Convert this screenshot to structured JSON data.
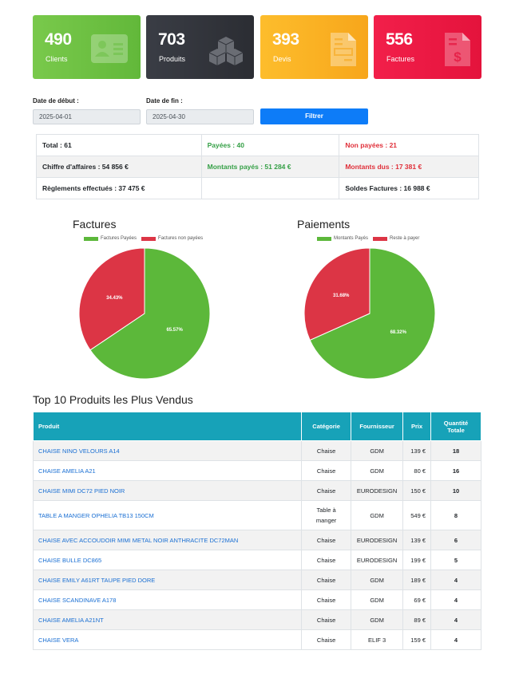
{
  "cards": {
    "clients": {
      "value": "490",
      "label": "Clients",
      "icon": "id-card-icon",
      "color": "#6cbf43"
    },
    "produits": {
      "value": "703",
      "label": "Produits",
      "icon": "boxes-icon",
      "color": "#33363d"
    },
    "devis": {
      "value": "393",
      "label": "Devis",
      "icon": "document-icon",
      "color": "#fbb024"
    },
    "factures": {
      "value": "556",
      "label": "Factures",
      "icon": "invoice-dollar-icon",
      "color": "#ea1842"
    }
  },
  "filter": {
    "start_label": "Date de début :",
    "start_value": "2025-04-01",
    "end_label": "Date de fin :",
    "end_value": "2025-04-30",
    "button_label": "Filtrer"
  },
  "summary": {
    "total": "Total : 61",
    "payees": "Payées : 40",
    "non_payees": "Non payées : 21",
    "chiffre": "Chiffre d'affaires : 54 856 €",
    "montants_payes": "Montants payés : 51 284 €",
    "montants_dus": "Montants dus : 17 381 €",
    "reglements": "Règlements effectués : 37 475 €",
    "soldes": "Soldes Factures : 16 988 €"
  },
  "chart_data": [
    {
      "type": "pie",
      "title": "Factures",
      "labels": [
        "Factures Payées",
        "Factures non payées"
      ],
      "values": [
        65.57,
        34.43
      ],
      "value_labels": [
        "65.57%",
        "34.43%"
      ],
      "colors": [
        "#5cb83a",
        "#dc3545"
      ],
      "legend": "top"
    },
    {
      "type": "pie",
      "title": "Paiements",
      "labels": [
        "Montants Payés",
        "Reste à payer"
      ],
      "values": [
        68.32,
        31.68
      ],
      "value_labels": [
        "68.32%",
        "31.68%"
      ],
      "colors": [
        "#5cb83a",
        "#dc3545"
      ],
      "legend": "top"
    }
  ],
  "top_products": {
    "title": "Top 10 Produits les Plus Vendus",
    "headers": {
      "produit": "Produit",
      "categorie": "Catégorie",
      "fournisseur": "Fournisseur",
      "prix": "Prix",
      "quantite_1": "Quantité",
      "quantite_2": "Totale"
    },
    "rows": [
      {
        "name": "CHAISE NINO VELOURS A14",
        "cat": "Chaise",
        "four": "GDM",
        "prix": "139 €",
        "qty": "18"
      },
      {
        "name": "CHAISE AMELIA A21",
        "cat": "Chaise",
        "four": "GDM",
        "prix": "80 €",
        "qty": "16"
      },
      {
        "name": "CHAISE MIMI DC72 PIED NOIR",
        "cat": "Chaise",
        "four": "EURODESIGN",
        "prix": "150 €",
        "qty": "10"
      },
      {
        "name": "TABLE A MANGER OPHELIA TB13 150CM",
        "cat": "Table à manger",
        "four": "GDM",
        "prix": "549 €",
        "qty": "8"
      },
      {
        "name": "CHAISE AVEC ACCOUDOIR MIMI METAL NOIR ANTHRACITE DC72MAN",
        "cat": "Chaise",
        "four": "EURODESIGN",
        "prix": "139 €",
        "qty": "6"
      },
      {
        "name": "CHAISE BULLE DC865",
        "cat": "Chaise",
        "four": "EURODESIGN",
        "prix": "199 €",
        "qty": "5"
      },
      {
        "name": "CHAISE EMILY A61RT TAUPE PIED DORE",
        "cat": "Chaise",
        "four": "GDM",
        "prix": "189 €",
        "qty": "4"
      },
      {
        "name": "CHAISE SCANDINAVE A178",
        "cat": "Chaise",
        "four": "GDM",
        "prix": "69 €",
        "qty": "4"
      },
      {
        "name": "CHAISE AMELIA A21NT",
        "cat": "Chaise",
        "four": "GDM",
        "prix": "89 €",
        "qty": "4"
      },
      {
        "name": "CHAISE VERA",
        "cat": "Chaise",
        "four": "ELIF 3",
        "prix": "159 €",
        "qty": "4"
      }
    ]
  }
}
